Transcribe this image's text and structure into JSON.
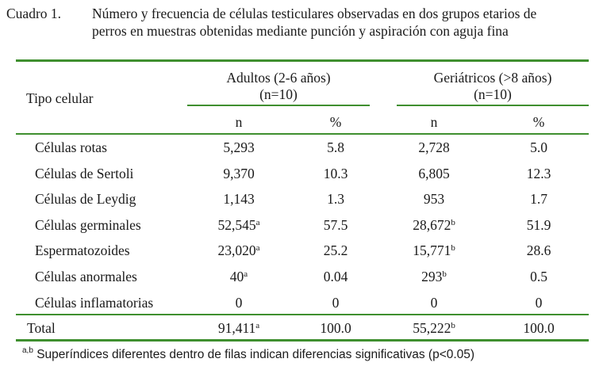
{
  "caption": {
    "label": "Cuadro 1.",
    "line1": "Número y frecuencia de células testiculares observadas en dos grupos etarios de",
    "line2": "perros en muestras obtenidas mediante punción y aspiración con aguja fina"
  },
  "table": {
    "header": {
      "row_label": "Tipo celular",
      "groups": [
        {
          "title": "Adultos (2-6 años)",
          "n": "(n=10)"
        },
        {
          "title": "Geriátricos (>8 años)",
          "n": "(n=10)"
        }
      ],
      "subheaders": [
        "n",
        "%",
        "n",
        "%"
      ]
    },
    "rows": [
      {
        "label": "Células rotas",
        "cells": [
          {
            "v": "5,293",
            "sup": ""
          },
          {
            "v": "5.8",
            "sup": ""
          },
          {
            "v": "2,728",
            "sup": ""
          },
          {
            "v": "5.0",
            "sup": ""
          }
        ]
      },
      {
        "label": "Células de Sertoli",
        "cells": [
          {
            "v": "9,370",
            "sup": ""
          },
          {
            "v": "10.3",
            "sup": ""
          },
          {
            "v": "6,805",
            "sup": ""
          },
          {
            "v": "12.3",
            "sup": ""
          }
        ]
      },
      {
        "label": "Células de Leydig",
        "cells": [
          {
            "v": "1,143",
            "sup": ""
          },
          {
            "v": "1.3",
            "sup": ""
          },
          {
            "v": "953",
            "sup": ""
          },
          {
            "v": "1.7",
            "sup": ""
          }
        ]
      },
      {
        "label": "Células germinales",
        "cells": [
          {
            "v": "52,545",
            "sup": "a"
          },
          {
            "v": "57.5",
            "sup": ""
          },
          {
            "v": "28,672",
            "sup": "b"
          },
          {
            "v": "51.9",
            "sup": ""
          }
        ]
      },
      {
        "label": "Espermatozoides",
        "cells": [
          {
            "v": "23,020",
            "sup": "a"
          },
          {
            "v": "25.2",
            "sup": ""
          },
          {
            "v": "15,771",
            "sup": "b"
          },
          {
            "v": "28.6",
            "sup": ""
          }
        ]
      },
      {
        "label": "Células anormales",
        "cells": [
          {
            "v": "40",
            "sup": "a"
          },
          {
            "v": "0.04",
            "sup": ""
          },
          {
            "v": "293",
            "sup": "b"
          },
          {
            "v": "0.5",
            "sup": ""
          }
        ]
      },
      {
        "label": "Células inflamatorias",
        "cells": [
          {
            "v": "0",
            "sup": ""
          },
          {
            "v": "0",
            "sup": ""
          },
          {
            "v": "0",
            "sup": ""
          },
          {
            "v": "0",
            "sup": ""
          }
        ]
      }
    ],
    "total": {
      "label": "Total",
      "cells": [
        {
          "v": "91,411",
          "sup": "a"
        },
        {
          "v": "100.0",
          "sup": ""
        },
        {
          "v": "55,222",
          "sup": "b"
        },
        {
          "v": "100.0",
          "sup": ""
        }
      ]
    }
  },
  "footnote": {
    "sup": "a,b",
    "text": "Superíndices diferentes dentro de filas indican diferencias significativas (p<0.05)"
  },
  "colors": {
    "rule": "#3f8f2f",
    "text": "#1a1a1a"
  }
}
